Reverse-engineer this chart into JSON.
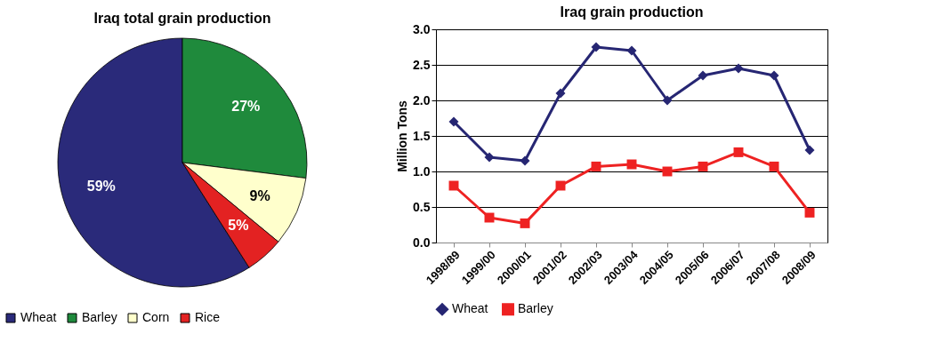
{
  "chart_data": [
    {
      "type": "pie",
      "title": "Iraq total grain production",
      "categories": [
        "Wheat",
        "Barley",
        "Corn",
        "Rice"
      ],
      "values": [
        59,
        27,
        9,
        5
      ],
      "colors": [
        "#2a2a7a",
        "#1f8a3c",
        "#ffffcc",
        "#e32222"
      ],
      "value_labels": [
        "59%",
        "27%",
        "9%",
        "5%"
      ],
      "legend": "bottom"
    },
    {
      "type": "line",
      "title": "Iraq grain production",
      "ylabel": "Million Tons",
      "categories": [
        "1998/89",
        "1999/00",
        "2000/01",
        "2001/02",
        "2002/03",
        "2003/04",
        "2004/05",
        "2005/06",
        "2006/07",
        "2007/08",
        "2008/09"
      ],
      "series": [
        {
          "name": "Wheat",
          "color": "#262673",
          "marker": "diamond",
          "values": [
            1.7,
            1.2,
            1.15,
            2.1,
            2.75,
            2.7,
            2.0,
            2.35,
            2.45,
            2.35,
            1.3
          ]
        },
        {
          "name": "Barley",
          "color": "#ee2222",
          "marker": "square",
          "values": [
            0.8,
            0.35,
            0.27,
            0.8,
            1.07,
            1.1,
            1.0,
            1.07,
            1.27,
            1.07,
            0.42
          ]
        }
      ],
      "ylim": [
        0,
        3
      ],
      "yticks": [
        {
          "value": 0,
          "label": "0.0"
        },
        {
          "value": 0.5,
          "label": "0.5"
        },
        {
          "value": 1,
          "label": "1.0"
        },
        {
          "value": 1.5,
          "label": "1.5"
        },
        {
          "value": 2,
          "label": "2.0"
        },
        {
          "value": 2.5,
          "label": "2.5"
        },
        {
          "value": 3,
          "label": "3.0"
        }
      ],
      "grid": "y",
      "legend": "bottom",
      "line_style": "solid"
    }
  ]
}
